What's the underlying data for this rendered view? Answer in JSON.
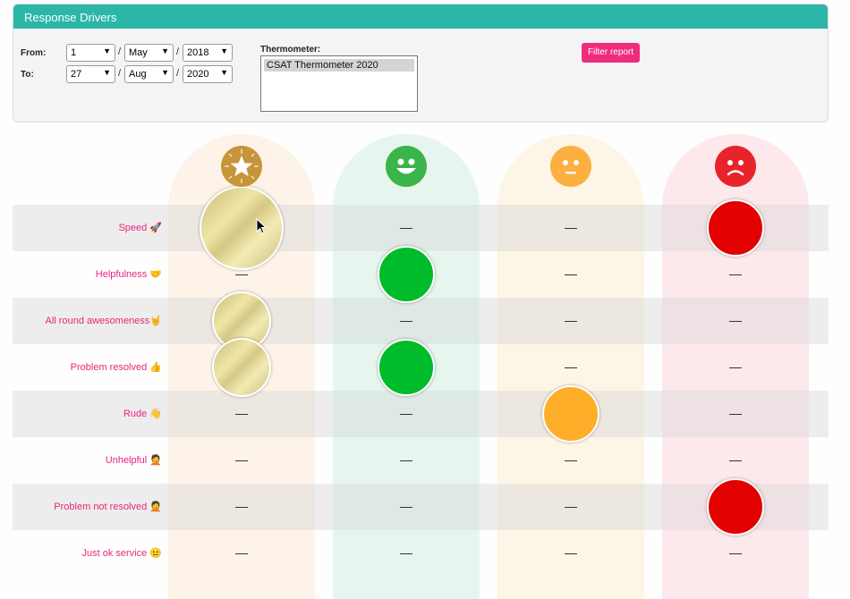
{
  "header": {
    "title": "Response Drivers"
  },
  "filters": {
    "from_label": "From:",
    "to_label": "To:",
    "from": {
      "day": "1",
      "month": "May",
      "year": "2018"
    },
    "to": {
      "day": "27",
      "month": "Aug",
      "year": "2020"
    },
    "separator": "/",
    "thermometer_label": "Thermometer:",
    "thermometer_selected": "CSAT Thermometer 2020",
    "filter_button": "Filter report"
  },
  "columns": [
    {
      "icon": "star-badge-icon",
      "color": "#c8943a",
      "tint": "#fdf3e8"
    },
    {
      "icon": "happy-face-icon",
      "color": "#39b54a",
      "tint": "#e6f6ee"
    },
    {
      "icon": "neutral-face-icon",
      "color": "#fbb040",
      "tint": "#fdf5e6"
    },
    {
      "icon": "sad-face-icon",
      "color": "#e8242b",
      "tint": "#fde8ec"
    }
  ],
  "drivers": [
    {
      "label": "Speed 🚀",
      "levels": [
        1.0,
        0,
        0,
        0.68
      ]
    },
    {
      "label": "Helpfulness 🤝",
      "levels": [
        0,
        0.68,
        0,
        0
      ]
    },
    {
      "label": "All round awesomeness🤘",
      "levels": [
        0.7,
        0,
        0,
        0
      ]
    },
    {
      "label": "Problem resolved 👍",
      "levels": [
        0.7,
        0.68,
        0,
        0
      ]
    },
    {
      "label": "Rude 👋",
      "levels": [
        0,
        0,
        0.68,
        0
      ]
    },
    {
      "label": "Unhelpful 🤦",
      "levels": [
        0,
        0,
        0,
        0
      ]
    },
    {
      "label": "Problem not resolved 🤦",
      "levels": [
        0,
        0,
        0,
        0.68
      ]
    },
    {
      "label": "Just ok service 😐",
      "levels": [
        0,
        0,
        0,
        0
      ]
    }
  ]
}
